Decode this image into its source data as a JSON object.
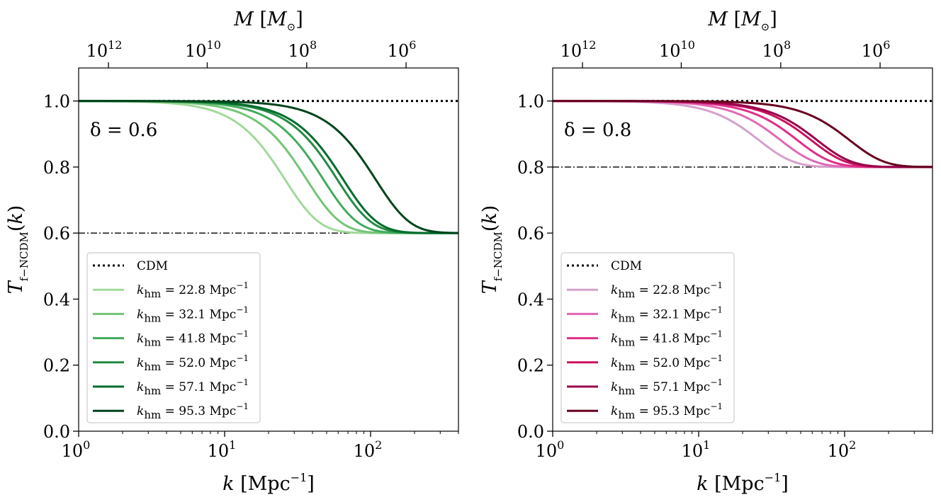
{
  "chart_data": [
    {
      "type": "line",
      "panel": "left",
      "xscale": "log",
      "xlim": [
        1,
        400
      ],
      "ylim": [
        0,
        1.1
      ],
      "xlabel": "k [Mpc^-1]",
      "ylabel": "T_f-NCDM(k)",
      "top_xlabel": "M [M_⊙]",
      "x_ticks": [
        {
          "value": 1,
          "mant": "10",
          "exp": "0"
        },
        {
          "value": 10,
          "mant": "10",
          "exp": "1"
        },
        {
          "value": 100,
          "mant": "10",
          "exp": "2"
        }
      ],
      "y_ticks": [
        {
          "value": 0,
          "text": "0.0"
        },
        {
          "value": 0.2,
          "text": "0.2"
        },
        {
          "value": 0.4,
          "text": "0.4"
        },
        {
          "value": 0.6,
          "text": "0.6"
        },
        {
          "value": 0.8,
          "text": "0.8"
        },
        {
          "value": 1.0,
          "text": "1.0"
        }
      ],
      "top_ticks": [
        {
          "k": 1.6,
          "mant": "10",
          "exp": "12"
        },
        {
          "k": 7.6,
          "mant": "10",
          "exp": "10"
        },
        {
          "k": 36.5,
          "mant": "10",
          "exp": "8"
        },
        {
          "k": 175,
          "mant": "10",
          "exp": "6"
        }
      ],
      "annotation": "δ = 0.6",
      "delta": 0.6,
      "cdm": {
        "name": "CDM",
        "value": 1.0
      },
      "floor": {
        "value": 0.6
      },
      "series": [
        {
          "name": "k_hm = 22.8 Mpc^-1",
          "khm": 22.8,
          "label_main": "k",
          "label_sub": "hm",
          "label_rest": " = 22.8 Mpc",
          "label_exp": "−1",
          "color": "#a1d99b"
        },
        {
          "name": "k_hm = 32.1 Mpc^-1",
          "khm": 32.1,
          "label_main": "k",
          "label_sub": "hm",
          "label_rest": " = 32.1 Mpc",
          "label_exp": "−1",
          "color": "#74c476"
        },
        {
          "name": "k_hm = 41.8 Mpc^-1",
          "khm": 41.8,
          "label_main": "k",
          "label_sub": "hm",
          "label_rest": " = 41.8 Mpc",
          "label_exp": "−1",
          "color": "#41ab5d"
        },
        {
          "name": "k_hm = 52.0 Mpc^-1",
          "khm": 52.0,
          "label_main": "k",
          "label_sub": "hm",
          "label_rest": " = 52.0 Mpc",
          "label_exp": "−1",
          "color": "#238b45"
        },
        {
          "name": "k_hm = 57.1 Mpc^-1",
          "khm": 57.1,
          "label_main": "k",
          "label_sub": "hm",
          "label_rest": " = 57.1 Mpc",
          "label_exp": "−1",
          "color": "#006d2c"
        },
        {
          "name": "k_hm = 95.3 Mpc^-1",
          "khm": 95.3,
          "label_main": "k",
          "label_sub": "hm",
          "label_rest": " = 95.3 Mpc",
          "label_exp": "−1",
          "color": "#00441b"
        }
      ]
    },
    {
      "type": "line",
      "panel": "right",
      "xscale": "log",
      "xlim": [
        1,
        400
      ],
      "ylim": [
        0,
        1.1
      ],
      "xlabel": "k [Mpc^-1]",
      "ylabel": "T_f-NCDM(k)",
      "top_xlabel": "M [M_⊙]",
      "x_ticks": [
        {
          "value": 1,
          "mant": "10",
          "exp": "0"
        },
        {
          "value": 10,
          "mant": "10",
          "exp": "1"
        },
        {
          "value": 100,
          "mant": "10",
          "exp": "2"
        }
      ],
      "y_ticks": [
        {
          "value": 0,
          "text": "0.0"
        },
        {
          "value": 0.2,
          "text": "0.2"
        },
        {
          "value": 0.4,
          "text": "0.4"
        },
        {
          "value": 0.6,
          "text": "0.6"
        },
        {
          "value": 0.8,
          "text": "0.8"
        },
        {
          "value": 1.0,
          "text": "1.0"
        }
      ],
      "top_ticks": [
        {
          "k": 1.6,
          "mant": "10",
          "exp": "12"
        },
        {
          "k": 7.6,
          "mant": "10",
          "exp": "10"
        },
        {
          "k": 36.5,
          "mant": "10",
          "exp": "8"
        },
        {
          "k": 175,
          "mant": "10",
          "exp": "6"
        }
      ],
      "annotation": "δ = 0.8",
      "delta": 0.8,
      "cdm": {
        "name": "CDM",
        "value": 1.0
      },
      "floor": {
        "value": 0.8
      },
      "series": [
        {
          "name": "k_hm = 22.8 Mpc^-1",
          "khm": 22.8,
          "label_main": "k",
          "label_sub": "hm",
          "label_rest": " = 22.8 Mpc",
          "label_exp": "−1",
          "color": "#d4a0cc"
        },
        {
          "name": "k_hm = 32.1 Mpc^-1",
          "khm": 32.1,
          "label_main": "k",
          "label_sub": "hm",
          "label_rest": " = 32.1 Mpc",
          "label_exp": "−1",
          "color": "#e268b4"
        },
        {
          "name": "k_hm = 41.8 Mpc^-1",
          "khm": 41.8,
          "label_main": "k",
          "label_sub": "hm",
          "label_rest": " = 41.8 Mpc",
          "label_exp": "−1",
          "color": "#e02e8a"
        },
        {
          "name": "k_hm = 52.0 Mpc^-1",
          "khm": 52.0,
          "label_main": "k",
          "label_sub": "hm",
          "label_rest": " = 52.0 Mpc",
          "label_exp": "−1",
          "color": "#c9135f"
        },
        {
          "name": "k_hm = 57.1 Mpc^-1",
          "khm": 57.1,
          "label_main": "k",
          "label_sub": "hm",
          "label_rest": " = 57.1 Mpc",
          "label_exp": "−1",
          "color": "#98004b"
        },
        {
          "name": "k_hm = 95.3 Mpc^-1",
          "khm": 95.3,
          "label_main": "k",
          "label_sub": "hm",
          "label_rest": " = 95.3 Mpc",
          "label_exp": "−1",
          "color": "#67001f"
        }
      ]
    }
  ]
}
